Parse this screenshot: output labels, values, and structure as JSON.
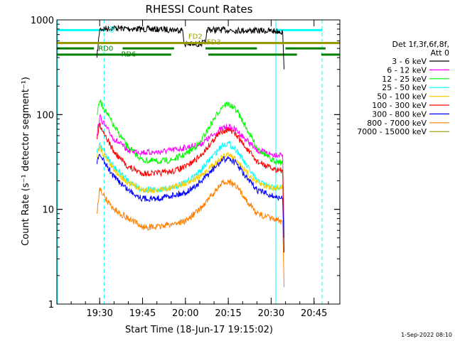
{
  "chart_data": {
    "type": "line",
    "title": "RHESSI Count Rates",
    "xlabel": "Start Time (18-Jun-17 19:15:02)",
    "ylabel": "Count Rate (s⁻¹ detector segment⁻¹)",
    "y_scale": "log",
    "ylim": [
      1,
      1000
    ],
    "xlim_minutes": [
      0,
      99
    ],
    "x_ticks": [
      {
        "label": "19:30",
        "minute": 14.97
      },
      {
        "label": "19:45",
        "minute": 29.97
      },
      {
        "label": "20:00",
        "minute": 44.97
      },
      {
        "label": "20:15",
        "minute": 59.97
      },
      {
        "label": "20:30",
        "minute": 74.97
      },
      {
        "label": "20:45",
        "minute": 89.97
      }
    ],
    "y_ticks": [
      {
        "label": "1",
        "value": 1
      },
      {
        "label": "10",
        "value": 10
      },
      {
        "label": "100",
        "value": 100
      },
      {
        "label": "1000",
        "value": 1000
      }
    ],
    "legend": {
      "header": [
        "Det 1f,3f,6f,8f,",
        "Att 0"
      ],
      "placement": "right"
    },
    "series": [
      {
        "name": "3 - 6 keV",
        "color": "#000000",
        "x": [
          14,
          15,
          20,
          30,
          40,
          44,
          44.5,
          48,
          50,
          52,
          52.5,
          60,
          70,
          78,
          79,
          79.5
        ],
        "values": [
          400,
          800,
          820,
          800,
          790,
          780,
          560,
          550,
          560,
          570,
          790,
          780,
          770,
          760,
          740,
          300
        ]
      },
      {
        "name": "6 - 12 keV",
        "color": "#ff00ff",
        "x": [
          14,
          15,
          17,
          20,
          25,
          30,
          35,
          40,
          45,
          50,
          55,
          58,
          60,
          63,
          66,
          70,
          75,
          78,
          79,
          79.5
        ],
        "values": [
          60,
          95,
          75,
          55,
          42,
          40,
          40,
          42,
          45,
          48,
          62,
          72,
          74,
          68,
          55,
          42,
          38,
          38,
          38,
          5
        ]
      },
      {
        "name": "12 - 25 keV",
        "color": "#00ff00",
        "x": [
          14,
          15,
          17,
          20,
          25,
          30,
          35,
          40,
          45,
          50,
          55,
          58,
          60,
          63,
          66,
          70,
          75,
          78,
          79,
          79.5
        ],
        "values": [
          100,
          140,
          110,
          75,
          45,
          33,
          32,
          33,
          38,
          50,
          90,
          125,
          130,
          110,
          75,
          45,
          33,
          32,
          30,
          5
        ]
      },
      {
        "name": "25 - 50 keV",
        "color": "#00ffff",
        "x": [
          14,
          15,
          17,
          20,
          25,
          30,
          35,
          40,
          45,
          50,
          55,
          58,
          60,
          63,
          66,
          70,
          75,
          78,
          79,
          79.5
        ],
        "values": [
          40,
          50,
          38,
          28,
          20,
          16,
          16,
          17,
          19,
          25,
          38,
          48,
          50,
          42,
          30,
          20,
          17,
          17,
          17,
          4
        ]
      },
      {
        "name": "50 - 100 keV",
        "color": "#ffcc00",
        "x": [
          14,
          15,
          17,
          20,
          25,
          30,
          35,
          40,
          45,
          50,
          55,
          58,
          60,
          63,
          66,
          70,
          75,
          78,
          79
        ],
        "values": [
          35,
          45,
          35,
          26,
          19,
          16,
          16,
          17,
          19,
          22,
          30,
          36,
          38,
          33,
          25,
          19,
          17,
          17,
          17
        ]
      },
      {
        "name": "100 - 300 keV",
        "color": "#ff0000",
        "x": [
          14,
          15,
          17,
          20,
          25,
          30,
          35,
          40,
          45,
          50,
          55,
          58,
          60,
          63,
          66,
          70,
          75,
          78,
          79,
          79.5
        ],
        "values": [
          55,
          80,
          60,
          40,
          28,
          24,
          24,
          25,
          28,
          36,
          55,
          68,
          70,
          60,
          45,
          32,
          27,
          26,
          26,
          5
        ]
      },
      {
        "name": "300 - 800 keV",
        "color": "#0000ff",
        "x": [
          14,
          15,
          17,
          20,
          25,
          30,
          35,
          40,
          45,
          50,
          55,
          58,
          60,
          63,
          66,
          70,
          75,
          78,
          79,
          79.5
        ],
        "values": [
          30,
          38,
          30,
          22,
          16,
          13,
          13,
          14,
          15,
          19,
          27,
          33,
          35,
          30,
          22,
          16,
          14,
          13,
          13,
          3.5
        ]
      },
      {
        "name": "800 - 7000 keV",
        "color": "#ff8000",
        "x": [
          14,
          15,
          17,
          20,
          25,
          30,
          35,
          40,
          45,
          50,
          55,
          58,
          60,
          63,
          66,
          70,
          75,
          78,
          79,
          79.5
        ],
        "values": [
          9,
          17,
          13,
          10,
          8,
          6.5,
          6.5,
          7,
          7.5,
          10,
          15,
          19,
          20,
          17,
          13,
          9,
          8,
          7.5,
          7.5,
          1.5
        ]
      },
      {
        "name": "7000 - 15000 keV",
        "color": "#999900",
        "x": [
          0,
          99
        ],
        "values": [
          570,
          570
        ]
      }
    ],
    "vertical_lines": [
      {
        "minute": 0.2,
        "style": "solid",
        "color": "#00ffff"
      },
      {
        "minute": 16.5,
        "style": "dashed",
        "color": "#00ffff"
      },
      {
        "minute": 76.6,
        "style": "solid",
        "color": "#00ffff"
      },
      {
        "minute": 92.8,
        "style": "dashed",
        "color": "#00ffff"
      }
    ],
    "flag_bars": [
      {
        "label": "",
        "color": "#00ffff",
        "value": 780,
        "segments": [
          [
            0,
            17
          ],
          [
            76.6,
            92.8
          ]
        ]
      },
      {
        "label": "",
        "color": "#999900",
        "value": 570,
        "segments": [
          [
            0,
            99
          ]
        ]
      },
      {
        "label": "",
        "color": "#008000",
        "value": 500,
        "segments": [
          [
            0,
            13
          ],
          [
            23,
            41
          ],
          [
            52,
            70
          ],
          [
            80,
            94
          ]
        ]
      },
      {
        "label": "",
        "color": "#008000",
        "value": 430,
        "segments": [
          [
            0,
            40
          ],
          [
            53,
            84
          ],
          [
            92.5,
            99
          ]
        ]
      }
    ],
    "annotations": [
      {
        "text": "RD0",
        "color": "#008000",
        "minute": 14.5,
        "value": 505
      },
      {
        "text": "RD6",
        "color": "#008000",
        "minute": 22.5,
        "value": 440
      },
      {
        "text": "FD2",
        "color": "#999900",
        "minute": 46,
        "value": 680
      },
      {
        "text": "FD3",
        "color": "#999900",
        "minute": 52.5,
        "value": 590
      },
      {
        "text": "@",
        "color": "#00ffff",
        "minute": 18,
        "value": 810
      }
    ]
  },
  "footer_date": "1-Sep-2022 08:10"
}
